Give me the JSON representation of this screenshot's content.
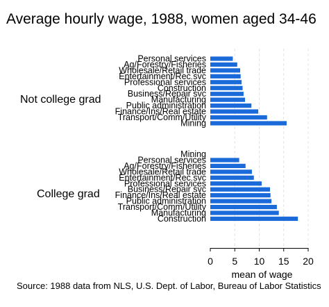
{
  "chart_data": {
    "type": "bar",
    "orientation": "horizontal",
    "title": "Average hourly wage, 1988, women aged 34-46",
    "xlabel": "mean of wage",
    "xlim": [
      0,
      20
    ],
    "xticks": [
      "0",
      "5",
      "10",
      "15",
      "20"
    ],
    "grid": true,
    "source": "Source:  1988 data from NLS, U.S. Dept. of Labor, Bureau of Labor Statistics",
    "groups": [
      {
        "name": "Not college grad",
        "categories": [
          "Personal services",
          "Ag/Forestry/Fisheries",
          "Wholesale/Retail trade",
          "Entertainment/Rec svc",
          "Professional services",
          "Construction",
          "Business/Repair svc",
          "Manufacturing",
          "Public administration",
          "Finance/Ins/Real estate",
          "Transport/Comm/Utility",
          "Mining"
        ],
        "values": [
          4.6,
          5.5,
          6.1,
          6.2,
          6.4,
          6.6,
          6.8,
          7.1,
          8.4,
          9.8,
          11.6,
          15.6
        ]
      },
      {
        "name": "College grad",
        "categories": [
          "Mining",
          "Personal services",
          "Ag/Forestry/Fisheries",
          "Wholesale/Retail trade",
          "Entertainment/Rec svc",
          "Professional services",
          "Business/Repair svc",
          "Finance/Ins/Real estate",
          "Public administration",
          "Transport/Comm/Utility",
          "Manufacturing",
          "Construction"
        ],
        "values": [
          0,
          5.9,
          7.2,
          8.5,
          8.9,
          10.5,
          12.2,
          12.3,
          12.5,
          13.6,
          14.0,
          17.9
        ]
      }
    ]
  }
}
